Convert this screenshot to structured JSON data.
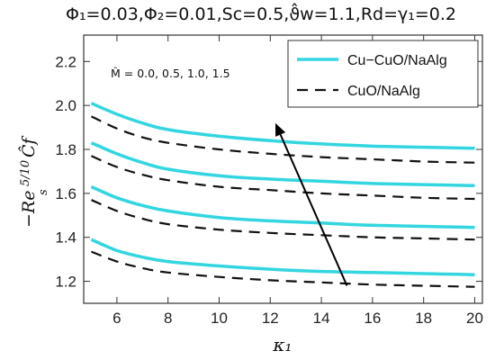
{
  "chart_data": {
    "type": "line",
    "title": "Φ₁=0.03,Φ₂=0.01,Sc=0.5,ϑ̂w=1.1,Rd=γ₁=0.2",
    "xlabel": "κ₁",
    "ylabel_main": "−Re",
    "ylabel_sub": "s",
    "ylabel_sup": "5/10",
    "ylabel_cf": "Ĉf",
    "xlim": [
      4.7,
      20.3
    ],
    "ylim": [
      1.1,
      2.32
    ],
    "x_ticks": [
      6,
      8,
      10,
      12,
      14,
      16,
      18,
      20
    ],
    "y_ticks": [
      1.2,
      1.4,
      1.6,
      1.8,
      2.0,
      2.2
    ],
    "y_tick_labels": [
      "1.2",
      "1.4",
      "1.6",
      "1.8",
      "2.0",
      "2.2"
    ],
    "legend_position": "top-right",
    "annotation": "M̂ = 0.0, 0.5, 1.0, 1.5",
    "arrow": {
      "from": [
        15.0,
        1.18
      ],
      "to": [
        12.2,
        1.92
      ]
    },
    "series": [
      {
        "name": "Cu−CuO/NaAlg",
        "style": "solid",
        "color": "#33d6e0",
        "curves": [
          {
            "x": [
              5,
              6,
              7,
              8,
              10,
              12,
              14,
              16,
              18,
              20
            ],
            "y": [
              2.01,
              1.96,
              1.92,
              1.89,
              1.86,
              1.84,
              1.825,
              1.815,
              1.81,
              1.805
            ]
          },
          {
            "x": [
              5,
              6,
              7,
              8,
              10,
              12,
              14,
              16,
              18,
              20
            ],
            "y": [
              1.83,
              1.78,
              1.74,
              1.71,
              1.68,
              1.665,
              1.655,
              1.645,
              1.64,
              1.635
            ]
          },
          {
            "x": [
              5,
              6,
              7,
              8,
              10,
              12,
              14,
              16,
              18,
              20
            ],
            "y": [
              1.63,
              1.58,
              1.545,
              1.52,
              1.49,
              1.475,
              1.465,
              1.455,
              1.45,
              1.445
            ]
          },
          {
            "x": [
              5,
              6,
              7,
              8,
              10,
              12,
              14,
              16,
              18,
              20
            ],
            "y": [
              1.39,
              1.34,
              1.31,
              1.29,
              1.27,
              1.255,
              1.245,
              1.24,
              1.235,
              1.23
            ]
          }
        ]
      },
      {
        "name": "CuO/NaAlg",
        "style": "dashed",
        "color": "#111111",
        "curves": [
          {
            "x": [
              5,
              6,
              7,
              8,
              10,
              12,
              14,
              16,
              18,
              20
            ],
            "y": [
              1.95,
              1.895,
              1.855,
              1.83,
              1.8,
              1.78,
              1.765,
              1.755,
              1.745,
              1.74
            ]
          },
          {
            "x": [
              5,
              6,
              7,
              8,
              10,
              12,
              14,
              16,
              18,
              20
            ],
            "y": [
              1.77,
              1.72,
              1.685,
              1.66,
              1.63,
              1.615,
              1.6,
              1.59,
              1.58,
              1.575
            ]
          },
          {
            "x": [
              5,
              6,
              7,
              8,
              10,
              12,
              14,
              16,
              18,
              20
            ],
            "y": [
              1.57,
              1.52,
              1.485,
              1.46,
              1.435,
              1.42,
              1.41,
              1.4,
              1.395,
              1.39
            ]
          },
          {
            "x": [
              5,
              6,
              7,
              8,
              10,
              12,
              14,
              16,
              18,
              20
            ],
            "y": [
              1.335,
              1.29,
              1.26,
              1.24,
              1.22,
              1.205,
              1.195,
              1.185,
              1.18,
              1.175
            ]
          }
        ]
      }
    ]
  }
}
